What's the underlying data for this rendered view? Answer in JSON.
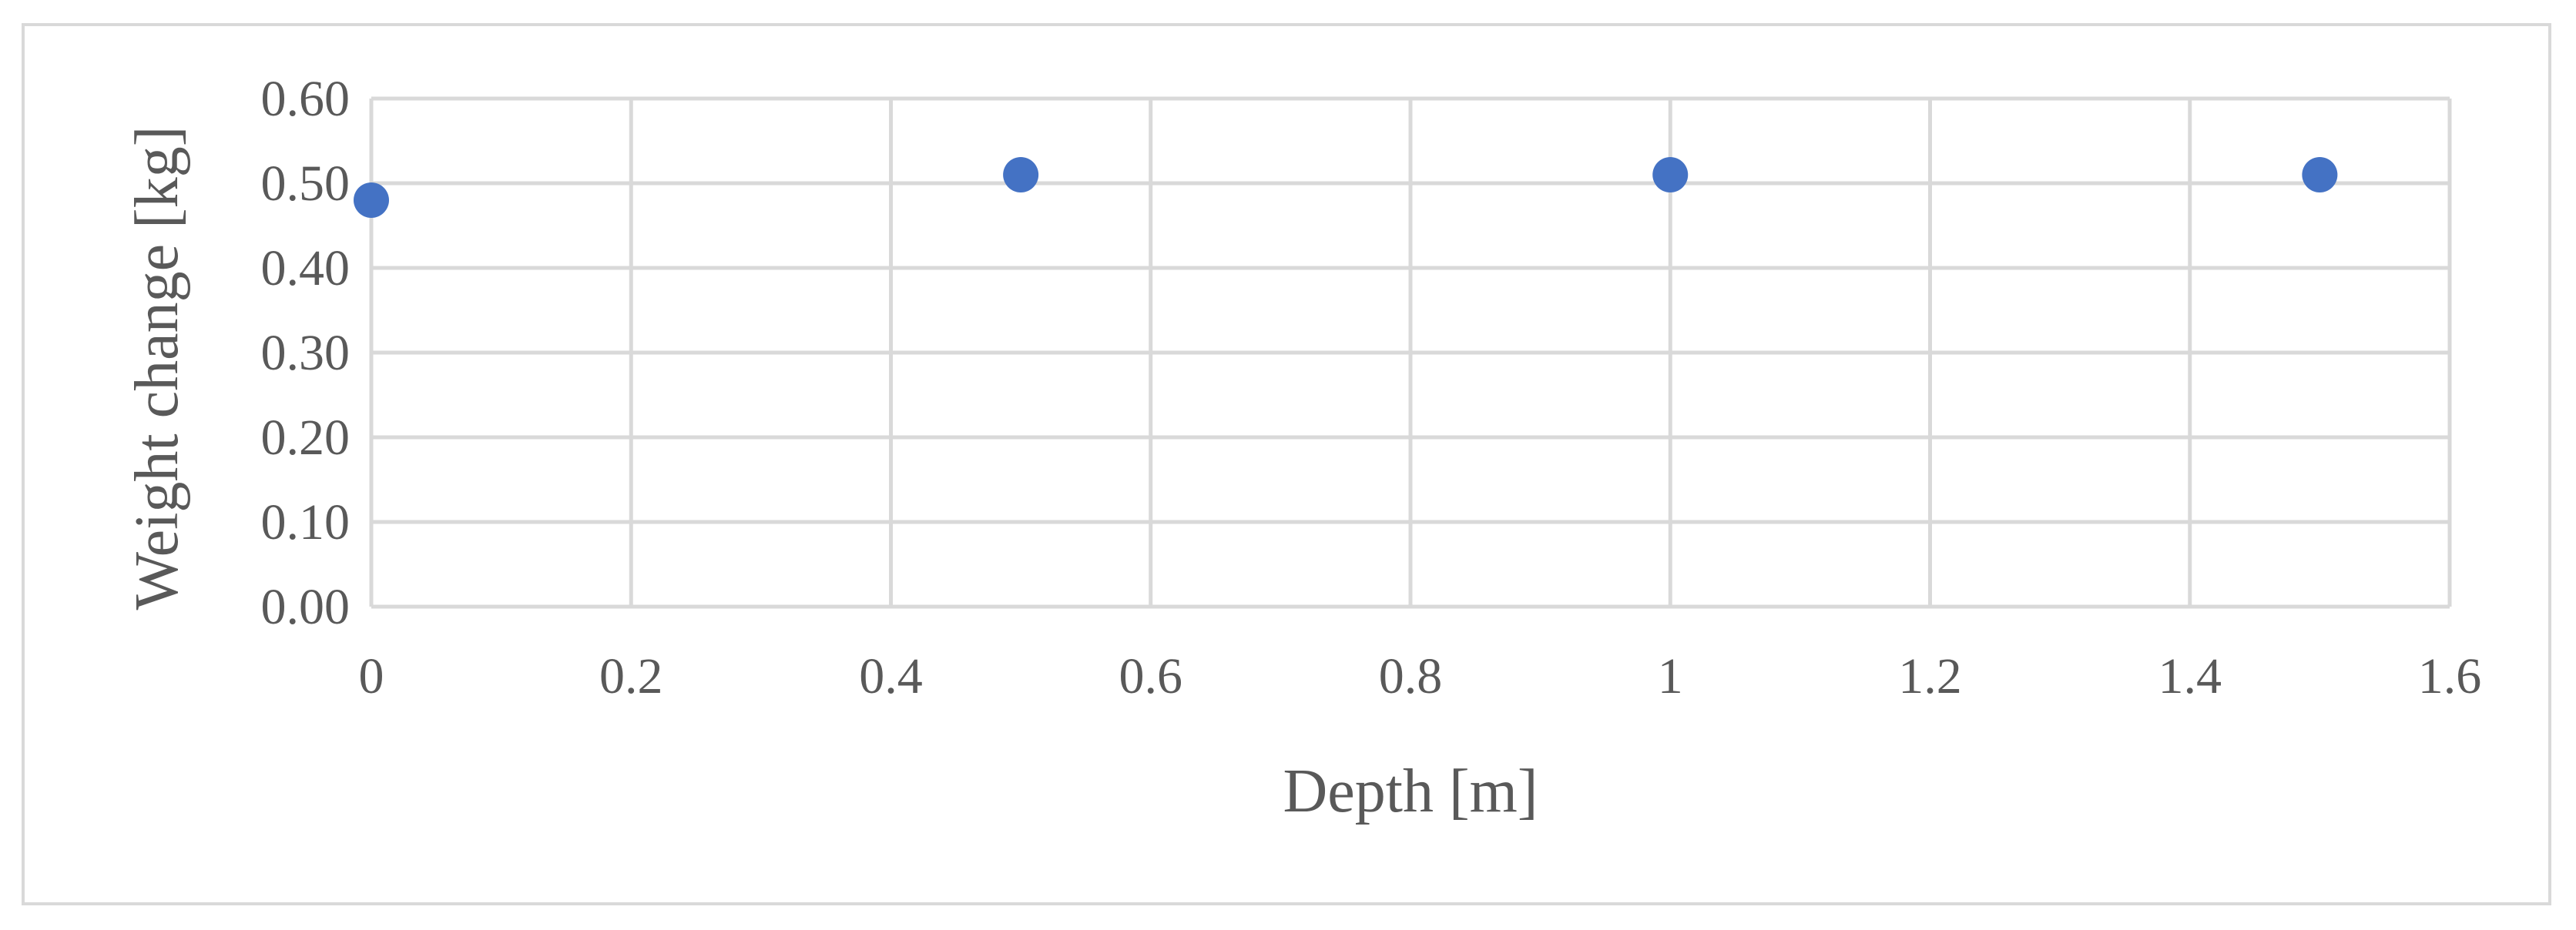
{
  "chart_data": {
    "type": "scatter",
    "title": "",
    "xlabel": "Depth [m]",
    "ylabel": "Weight change [kg]",
    "xlim": [
      0,
      1.6
    ],
    "ylim": [
      0,
      0.6
    ],
    "x_ticks": [
      "0",
      "0.2",
      "0.4",
      "0.6",
      "0.8",
      "1",
      "1.2",
      "1.4",
      "1.6"
    ],
    "y_ticks": [
      "0.00",
      "0.10",
      "0.20",
      "0.30",
      "0.40",
      "0.50",
      "0.60"
    ],
    "x_tick_values": [
      0,
      0.2,
      0.4,
      0.6,
      0.8,
      1.0,
      1.2,
      1.4,
      1.6
    ],
    "y_tick_values": [
      0,
      0.1,
      0.2,
      0.3,
      0.4,
      0.5,
      0.6
    ],
    "grid": true,
    "legend": "none",
    "series": [
      {
        "color": "#4472c4",
        "x": [
          0,
          0.5,
          1.0,
          1.5
        ],
        "y": [
          0.48,
          0.51,
          0.51,
          0.51
        ]
      }
    ]
  }
}
